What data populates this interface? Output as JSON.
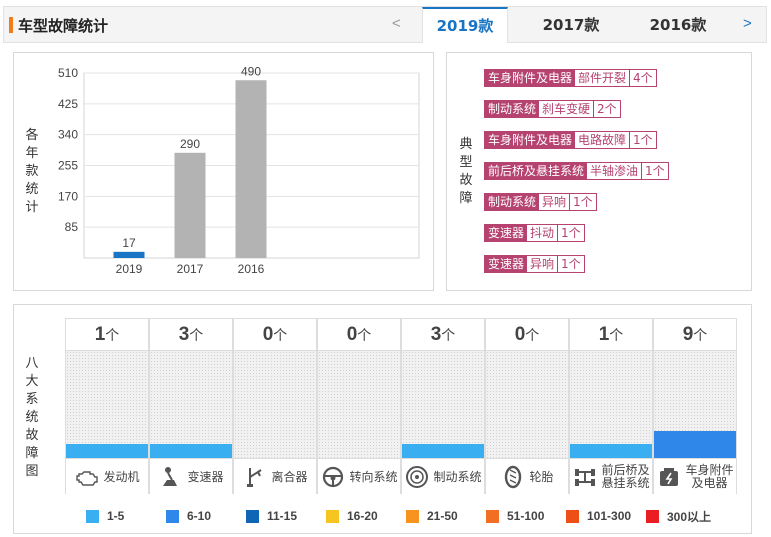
{
  "header": {
    "title": "车型故障统计",
    "prev": "<",
    "next": ">",
    "tabs": [
      {
        "label": "2019款",
        "active": true
      },
      {
        "label": "2017款",
        "active": false
      },
      {
        "label": "2016款",
        "active": false
      }
    ]
  },
  "chart_panel": {
    "side_label": [
      "各",
      "年",
      "款",
      "统",
      "计"
    ]
  },
  "chart_data": {
    "type": "bar",
    "categories": [
      "2019",
      "2017",
      "2016"
    ],
    "values": [
      17,
      290,
      490
    ],
    "ylim": [
      0,
      510
    ],
    "yticks": [
      85,
      170,
      255,
      340,
      425,
      510
    ],
    "bar_colors": [
      "#1a74c4",
      "#b3b3b3",
      "#b3b3b3"
    ],
    "grid": true
  },
  "typical_faults": {
    "side_label": [
      "典",
      "型",
      "故",
      "障"
    ],
    "items": [
      {
        "category": "车身附件及电器",
        "fault": "部件开裂",
        "count": "4个"
      },
      {
        "category": "制动系统",
        "fault": "刹车变硬",
        "count": "2个"
      },
      {
        "category": "车身附件及电器",
        "fault": "电路故障",
        "count": "1个"
      },
      {
        "category": "前后桥及悬挂系统",
        "fault": "半轴渗油",
        "count": "1个"
      },
      {
        "category": "制动系统",
        "fault": "异响",
        "count": "1个"
      },
      {
        "category": "变速器",
        "fault": "抖动",
        "count": "1个"
      },
      {
        "category": "变速器",
        "fault": "异响",
        "count": "1个"
      }
    ]
  },
  "systems": {
    "side_label": [
      "八",
      "大",
      "系",
      "统",
      "故",
      "障",
      "图"
    ],
    "unit": "个",
    "items": [
      {
        "count": "1",
        "name": [
          "发动机"
        ],
        "icon": "engine-icon",
        "level": 0.13,
        "color": "#39aef0"
      },
      {
        "count": "3",
        "name": [
          "变速器"
        ],
        "icon": "gearshift-icon",
        "level": 0.13,
        "color": "#39aef0"
      },
      {
        "count": "0",
        "name": [
          "离合器"
        ],
        "icon": "clutch-pedal-icon",
        "level": 0,
        "color": "#39aef0"
      },
      {
        "count": "0",
        "name": [
          "转向系统"
        ],
        "icon": "steering-wheel-icon",
        "level": 0,
        "color": "#39aef0"
      },
      {
        "count": "3",
        "name": [
          "制动系统"
        ],
        "icon": "brake-disc-icon",
        "level": 0.13,
        "color": "#39aef0"
      },
      {
        "count": "0",
        "name": [
          "轮胎"
        ],
        "icon": "tire-icon",
        "level": 0,
        "color": "#39aef0"
      },
      {
        "count": "1",
        "name": [
          "前后桥及",
          "悬挂系统"
        ],
        "icon": "suspension-icon",
        "level": 0.13,
        "color": "#39aef0"
      },
      {
        "count": "9",
        "name": [
          "车身附件",
          "及电器"
        ],
        "icon": "car-body-icon",
        "level": 0.25,
        "color": "#2f87ea"
      }
    ]
  },
  "legend": [
    {
      "label": "1-5",
      "color": "#39aef0"
    },
    {
      "label": "6-10",
      "color": "#2f87ea"
    },
    {
      "label": "11-15",
      "color": "#1066b4"
    },
    {
      "label": "16-20",
      "color": "#f7c520"
    },
    {
      "label": "21-50",
      "color": "#f7931e"
    },
    {
      "label": "51-100",
      "color": "#f26e22"
    },
    {
      "label": "101-300",
      "color": "#ee4f16"
    },
    {
      "label": "300以上",
      "color": "#ea1d23"
    }
  ]
}
